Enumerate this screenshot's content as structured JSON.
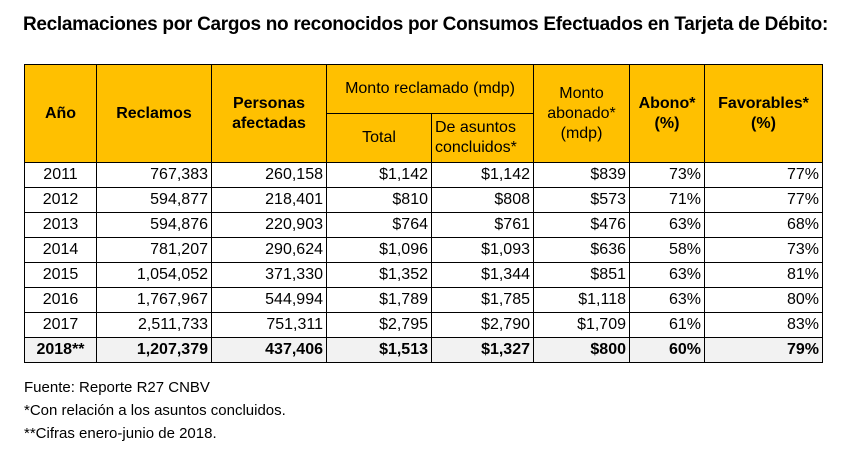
{
  "title": "Reclamaciones por Cargos no reconocidos por Consumos Efectuados en Tarjeta de Débito:",
  "table": {
    "headers": {
      "year": "Año",
      "claims": "Reclamos",
      "people": "Personas afectadas",
      "claimed": "Monto reclamado (mdp)",
      "total": "Total",
      "concluded": "De asuntos concluidos*",
      "credited": "Monto abonado* (mdp)",
      "credit_pct": "Abono* (%)",
      "favorable": "Favorables* (%)"
    },
    "rows": [
      [
        "2011",
        "767,383",
        "260,158",
        "$1,142",
        "$1,142",
        "$839",
        "73%",
        "77%"
      ],
      [
        "2012",
        "594,877",
        "218,401",
        "$810",
        "$808",
        "$573",
        "71%",
        "77%"
      ],
      [
        "2013",
        "594,876",
        "220,903",
        "$764",
        "$761",
        "$476",
        "63%",
        "68%"
      ],
      [
        "2014",
        "781,207",
        "290,624",
        "$1,096",
        "$1,093",
        "$636",
        "58%",
        "73%"
      ],
      [
        "2015",
        "1,054,052",
        "371,330",
        "$1,352",
        "$1,344",
        "$851",
        "63%",
        "81%"
      ],
      [
        "2016",
        "1,767,967",
        "544,994",
        "$1,789",
        "$1,785",
        "$1,118",
        "63%",
        "80%"
      ],
      [
        "2017",
        "2,511,733",
        "751,311",
        "$2,795",
        "$2,790",
        "$1,709",
        "61%",
        "83%"
      ],
      [
        "2018**",
        "1,207,379",
        "437,406",
        "$1,513",
        "$1,327",
        "$800",
        "60%",
        "79%"
      ]
    ]
  },
  "notes": [
    "Fuente: Reporte R27 CNBV",
    "*Con relación a los asuntos concluidos.",
    "**Cifras enero-junio de 2018."
  ]
}
